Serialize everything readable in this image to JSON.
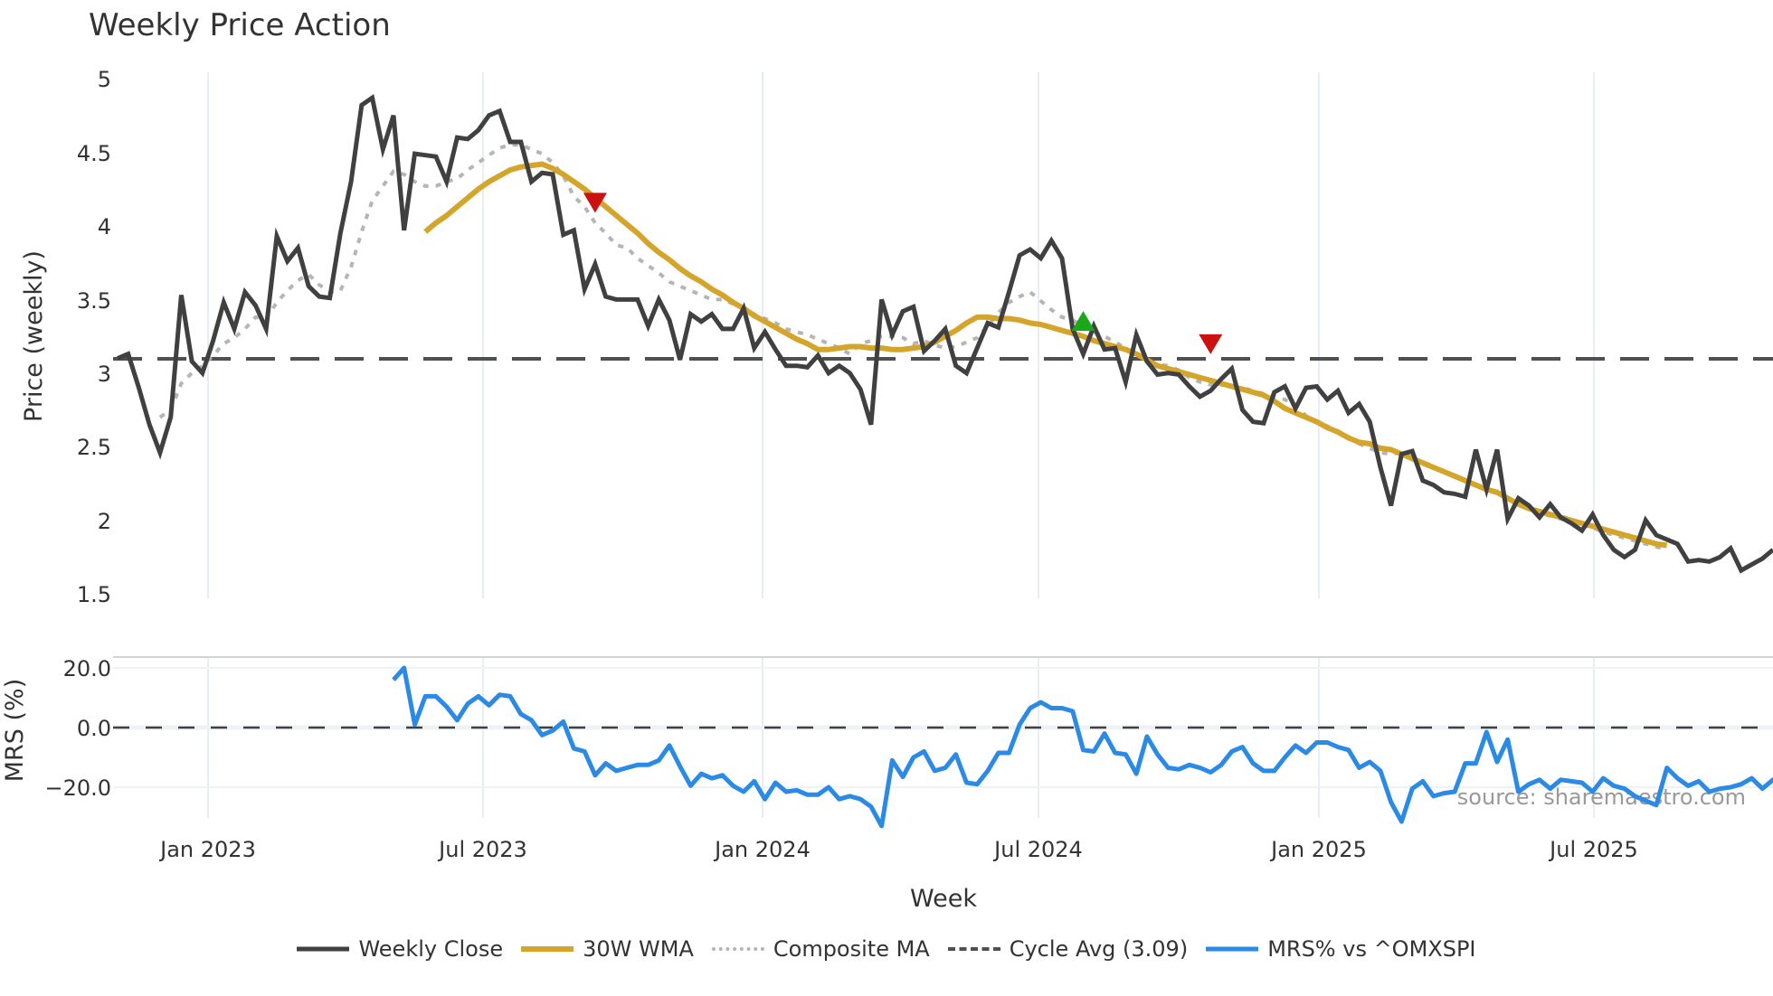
{
  "header": {
    "title": "Weekly Price Action"
  },
  "colors": {
    "weekly_close": "#404040",
    "wma": "#d4a52a",
    "composite_ma": "#b5b5b5",
    "cycle_avg": "#505050",
    "mrs": "#2a8ae6",
    "buy_marker": "#1aa81a",
    "sell_marker": "#cc1111",
    "grid": "#e8edf3"
  },
  "price_panel": {
    "ylabel": "Price (weekly)",
    "yticks": [
      "5",
      "4.5",
      "4",
      "3.5",
      "3",
      "2.5",
      "2",
      "1.5"
    ],
    "cycle_avg_value": 3.09
  },
  "mrs_panel": {
    "ylabel": "MRS (%)",
    "yticks": [
      "20.0",
      "0.0",
      "−20.0"
    ]
  },
  "xaxis": {
    "title": "Week",
    "ticks": [
      "Jan 2023",
      "Jul 2023",
      "Jan 2024",
      "Jul 2024",
      "Jan 2025",
      "Jul 2025"
    ]
  },
  "watermark": "source: sharemaestro.com",
  "legend": {
    "items": [
      {
        "label": "Weekly Close",
        "style": "solid-dark"
      },
      {
        "label": "30W WMA",
        "style": "solid-gold"
      },
      {
        "label": "Composite MA",
        "style": "dotted-gray"
      },
      {
        "label": "Cycle Avg (3.09)",
        "style": "dashed-dark"
      },
      {
        "label": "MRS% vs ^OMXSPI",
        "style": "solid-blue"
      }
    ]
  },
  "chart_data": [
    {
      "type": "line",
      "title": "Weekly Price Action",
      "xlabel": "Week",
      "ylabel": "Price (weekly)",
      "ylim": [
        1.5,
        5
      ],
      "x_ticks": [
        "Jan 2023",
        "Jul 2023",
        "Jan 2024",
        "Jul 2024",
        "Jan 2025",
        "Jul 2025"
      ],
      "grid": true,
      "legend_position": "bottom",
      "series": [
        {
          "name": "Weekly Close",
          "values": [
            3.1,
            3.13,
            2.9,
            2.65,
            2.46,
            2.7,
            3.53,
            3.08,
            3.0,
            3.22,
            3.48,
            3.3,
            3.55,
            3.46,
            3.3,
            3.93,
            3.76,
            3.85,
            3.59,
            3.52,
            3.51,
            3.95,
            4.3,
            4.82,
            4.87,
            4.52,
            4.75,
            3.97,
            4.49,
            4.48,
            4.47,
            4.3,
            4.6,
            4.59,
            4.65,
            4.75,
            4.78,
            4.57,
            4.57,
            4.3,
            4.36,
            4.35,
            3.94,
            3.97,
            3.57,
            3.74,
            3.52,
            3.5,
            3.5,
            3.5,
            3.32,
            3.5,
            3.36,
            3.09,
            3.4,
            3.35,
            3.4,
            3.3,
            3.3,
            3.44,
            3.17,
            3.28,
            3.16,
            3.05,
            3.05,
            3.04,
            3.12,
            3.0,
            3.05,
            3.0,
            2.89,
            2.65,
            3.5,
            3.26,
            3.42,
            3.45,
            3.15,
            3.22,
            3.3,
            3.05,
            3.0,
            3.17,
            3.34,
            3.31,
            3.55,
            3.8,
            3.84,
            3.78,
            3.9,
            3.78,
            3.3,
            3.13,
            3.32,
            3.16,
            3.17,
            2.94,
            3.26,
            3.08,
            2.99,
            3.0,
            2.99,
            2.91,
            2.84,
            2.88,
            2.96,
            3.03,
            2.75,
            2.67,
            2.66,
            2.87,
            2.91,
            2.76,
            2.9,
            2.91,
            2.82,
            2.88,
            2.73,
            2.79,
            2.67,
            2.36,
            2.1,
            2.45,
            2.47,
            2.27,
            2.24,
            2.19,
            2.18,
            2.16,
            2.48,
            2.21,
            2.48,
            2.01,
            2.15,
            2.1,
            2.02,
            2.11,
            2.02,
            1.98,
            1.93,
            2.04,
            1.9,
            1.8,
            1.75,
            1.8,
            2.0,
            1.9,
            1.87,
            1.84,
            1.72,
            1.73,
            1.72,
            1.75,
            1.81,
            1.66,
            1.7,
            1.74,
            1.8
          ]
        },
        {
          "name": "30W WMA",
          "start_index": 29,
          "values": [
            3.96,
            4.02,
            4.07,
            4.13,
            4.19,
            4.25,
            4.3,
            4.34,
            4.38,
            4.4,
            4.41,
            4.42,
            4.39,
            4.35,
            4.3,
            4.25,
            4.19,
            4.13,
            4.07,
            4.01,
            3.95,
            3.88,
            3.82,
            3.77,
            3.71,
            3.66,
            3.62,
            3.57,
            3.53,
            3.48,
            3.44,
            3.39,
            3.35,
            3.31,
            3.27,
            3.23,
            3.2,
            3.16,
            3.16,
            3.17,
            3.18,
            3.18,
            3.17,
            3.17,
            3.16,
            3.16,
            3.17,
            3.18,
            3.21,
            3.25,
            3.29,
            3.34,
            3.38,
            3.38,
            3.37,
            3.37,
            3.36,
            3.34,
            3.33,
            3.31,
            3.29,
            3.27,
            3.25,
            3.22,
            3.2,
            3.18,
            3.16,
            3.13,
            3.09,
            3.05,
            3.03,
            3.01,
            2.99,
            2.97,
            2.95,
            2.93,
            2.91,
            2.89,
            2.87,
            2.85,
            2.81,
            2.76,
            2.73,
            2.7,
            2.67,
            2.63,
            2.6,
            2.56,
            2.53,
            2.52,
            2.49,
            2.48,
            2.45,
            2.42,
            2.39,
            2.36,
            2.33,
            2.3,
            2.27,
            2.24,
            2.21,
            2.19,
            2.15,
            2.11,
            2.08,
            2.06,
            2.04,
            2.02,
            2.0,
            1.98,
            1.96,
            1.94,
            1.92,
            1.9,
            1.88,
            1.86,
            1.84,
            1.83
          ]
        },
        {
          "name": "Composite MA",
          "start_index": 4,
          "values": [
            2.7,
            2.75,
            2.93,
            3.0,
            3.05,
            3.12,
            3.2,
            3.24,
            3.3,
            3.38,
            3.37,
            3.48,
            3.56,
            3.63,
            3.67,
            3.6,
            3.55,
            3.56,
            3.72,
            3.96,
            4.17,
            4.27,
            4.37,
            4.35,
            4.3,
            4.27,
            4.27,
            4.3,
            4.32,
            4.38,
            4.43,
            4.48,
            4.53,
            4.55,
            4.55,
            4.52,
            4.49,
            4.43,
            4.34,
            4.2,
            4.13,
            4.02,
            3.95,
            3.87,
            3.85,
            3.78,
            3.73,
            3.68,
            3.62,
            3.59,
            3.56,
            3.53,
            3.5,
            3.5,
            3.47,
            3.44,
            3.4,
            3.37,
            3.34,
            3.3,
            3.28,
            3.26,
            3.23,
            3.2,
            3.17,
            3.13,
            3.2,
            3.22,
            3.25,
            3.25,
            3.24,
            3.2,
            3.22,
            3.19,
            3.17,
            3.18,
            3.21,
            3.24,
            3.32,
            3.41,
            3.48,
            3.52,
            3.55,
            3.49,
            3.43,
            3.38,
            3.36,
            3.32,
            3.28,
            3.25,
            3.21,
            3.17,
            3.12,
            3.09,
            3.06,
            3.05,
            3.02,
            2.97,
            2.94,
            2.92,
            2.92,
            2.91,
            2.9,
            2.88,
            2.86,
            2.84,
            2.82,
            2.78,
            2.71,
            2.67,
            2.64,
            2.6,
            2.56,
            2.52,
            2.49,
            2.46,
            2.45,
            2.46,
            2.43,
            2.39,
            2.36,
            2.33,
            2.3,
            2.27,
            2.24,
            2.21,
            2.18,
            2.15,
            2.12,
            2.08,
            2.05,
            2.03,
            2.01,
            1.99,
            1.97,
            1.95,
            1.92,
            1.9,
            1.88,
            1.86,
            1.84,
            1.82,
            1.8
          ]
        },
        {
          "name": "Cycle Avg (3.09)",
          "values": [
            3.09,
            3.09
          ]
        }
      ],
      "markers": [
        {
          "type": "sell",
          "shape": "triangle-down",
          "index": 45,
          "value": 4.16
        },
        {
          "type": "buy",
          "shape": "triangle-up",
          "index": 91,
          "value": 3.35
        },
        {
          "type": "sell",
          "shape": "triangle-down",
          "index": 103,
          "value": 3.2
        }
      ]
    },
    {
      "type": "line",
      "title": "MRS% vs ^OMXSPI",
      "ylabel": "MRS (%)",
      "ylim": [
        -35,
        25
      ],
      "y_ticks": [
        "20.0",
        "0.0",
        "−20.0"
      ],
      "grid": true,
      "series": [
        {
          "name": "MRS% vs ^OMXSPI",
          "start_index": 26,
          "values": [
            16,
            20,
            1,
            10.5,
            10.5,
            7,
            2.5,
            8,
            10.5,
            7.5,
            11,
            10.5,
            4.5,
            2.5,
            -2.5,
            -1,
            2,
            -7,
            -8,
            -16,
            -12,
            -14.5,
            -13.5,
            -12.5,
            -12.5,
            -11,
            -6,
            -13,
            -19.5,
            -15.5,
            -17,
            -16,
            -19.5,
            -21.5,
            -18,
            -24,
            -18.5,
            -21.5,
            -21,
            -22.5,
            -22.5,
            -20,
            -24,
            -23,
            -24,
            -26.5,
            -33,
            -11,
            -16.5,
            -10,
            -8,
            -14.5,
            -13.5,
            -9,
            -18.5,
            -19,
            -14.5,
            -8.5,
            -8.5,
            1,
            6.5,
            8.5,
            6.5,
            6.5,
            5.5,
            -7.5,
            -8,
            -2,
            -8.5,
            -9,
            -15.5,
            -3,
            -9,
            -13.5,
            -14,
            -12.5,
            -13.5,
            -15,
            -12.5,
            -8,
            -6.5,
            -12,
            -14.5,
            -14.5,
            -10,
            -6,
            -8.5,
            -5,
            -5,
            -6.5,
            -7.5,
            -13.5,
            -11.5,
            -14.5,
            -25,
            -31.5,
            -20.5,
            -18,
            -23,
            -22,
            -21.5,
            -12,
            -12,
            -1.5,
            -11.5,
            -4,
            -21.5,
            -19,
            -17.5,
            -20.5,
            -17.5,
            -18,
            -18.5,
            -21.5,
            -17,
            -19.5,
            -20.5,
            -23,
            -24.5,
            -26,
            -13.5,
            -17,
            -19.5,
            -18,
            -21.5,
            -20.5,
            -20,
            -19,
            -17,
            -20.5,
            -17.5,
            -16,
            -14.5
          ]
        },
        {
          "name": "Zero line",
          "values": [
            0,
            0
          ]
        }
      ]
    }
  ]
}
